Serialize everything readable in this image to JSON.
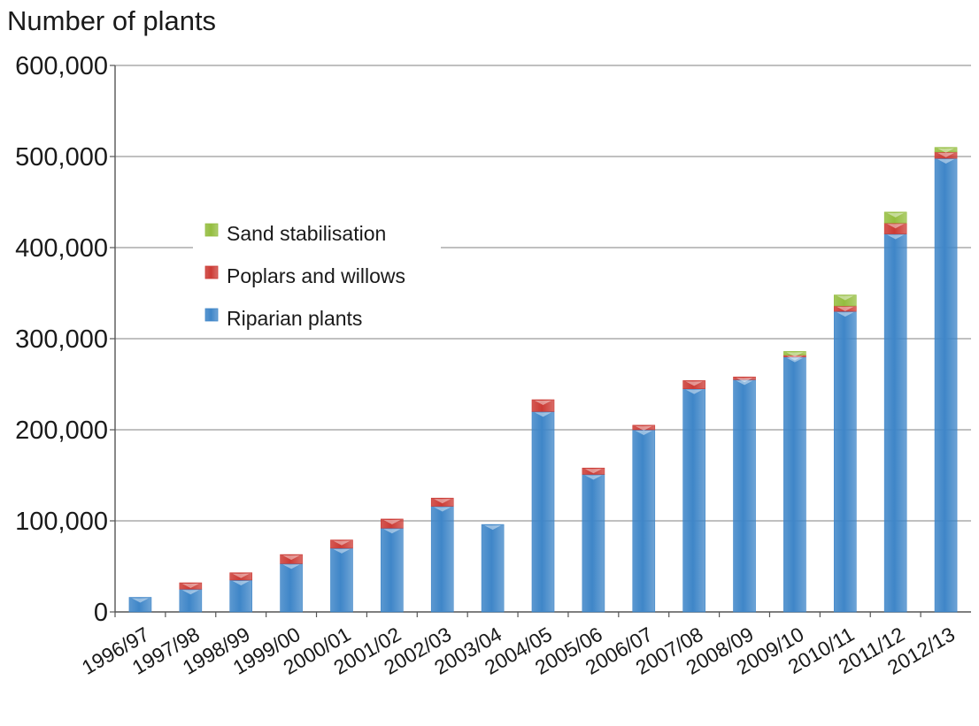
{
  "chart_data": {
    "type": "bar",
    "stacked": true,
    "ylabel": "Number of plants",
    "xlabel": "",
    "ylim": [
      0,
      600000
    ],
    "yticks": [
      0,
      100000,
      200000,
      300000,
      400000,
      500000,
      600000
    ],
    "ytick_labels": [
      "0",
      "100,000",
      "200,000",
      "300,000",
      "400,000",
      "500,000",
      "600,000"
    ],
    "grid": true,
    "legend_position": "upper-left",
    "categories": [
      "1996/97",
      "1997/98",
      "1998/99",
      "1999/00",
      "2000/01",
      "2001/02",
      "2002/03",
      "2003/04",
      "2004/05",
      "2005/06",
      "2006/07",
      "2007/08",
      "2008/09",
      "2009/10",
      "2010/11",
      "2011/12",
      "2012/13"
    ],
    "series": [
      {
        "name": "Riparian plants",
        "color": "#3f86c8",
        "values": [
          16000,
          25000,
          35000,
          53000,
          70000,
          92000,
          116000,
          96000,
          220000,
          151000,
          200000,
          245000,
          255000,
          280000,
          330000,
          415000,
          498000
        ]
      },
      {
        "name": "Poplars and willows",
        "color": "#cc3b35",
        "values": [
          0,
          7000,
          8000,
          10000,
          9000,
          10000,
          9000,
          0,
          13000,
          7000,
          5000,
          9000,
          3000,
          2000,
          6000,
          12000,
          7000
        ]
      },
      {
        "name": "Sand stabilisation",
        "color": "#94bd3f",
        "values": [
          0,
          0,
          0,
          0,
          0,
          0,
          0,
          0,
          0,
          0,
          0,
          0,
          0,
          4000,
          12000,
          12000,
          5000
        ]
      }
    ],
    "legend_order": [
      "Sand stabilisation",
      "Poplars and willows",
      "Riparian plants"
    ]
  }
}
